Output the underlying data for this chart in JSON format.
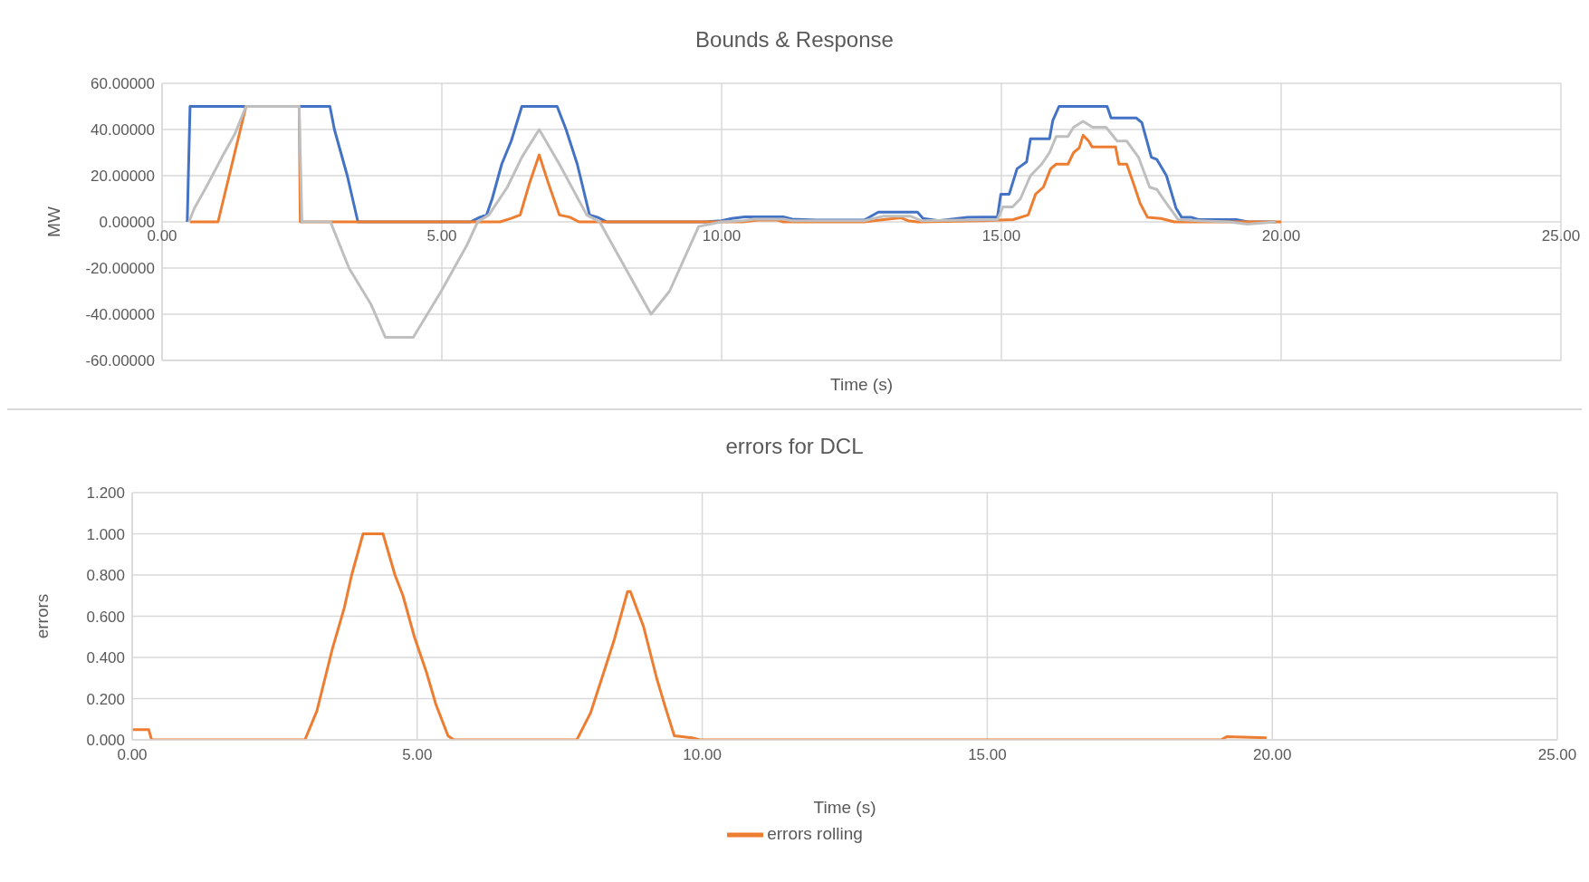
{
  "chart_data": [
    {
      "type": "line",
      "title": "Bounds & Response",
      "xlabel": "Time (s)",
      "ylabel": "MW",
      "xlim": [
        0,
        25
      ],
      "ylim": [
        -60,
        60
      ],
      "xticks": [
        {
          "value": 0,
          "label": "0.00"
        },
        {
          "value": 5,
          "label": "5.00"
        },
        {
          "value": 10,
          "label": "10.00"
        },
        {
          "value": 15,
          "label": "15.00"
        },
        {
          "value": 20,
          "label": "20.00"
        },
        {
          "value": 25,
          "label": "25.00"
        }
      ],
      "yticks": [
        {
          "value": -60,
          "label": "-60.00000"
        },
        {
          "value": -40,
          "label": "-40.00000"
        },
        {
          "value": -20,
          "label": "-20.00000"
        },
        {
          "value": 0,
          "label": "0.00000"
        },
        {
          "value": 20,
          "label": "20.00000"
        },
        {
          "value": 40,
          "label": "40.00000"
        },
        {
          "value": 60,
          "label": "60.00000"
        }
      ],
      "grid": true,
      "legend": false,
      "marker": "none",
      "line_style": "solid",
      "series": [
        {
          "color": "#4472c4",
          "x": [
            0.45,
            0.5,
            3.0,
            3.08,
            3.31,
            3.5,
            5.51,
            5.68,
            5.8,
            5.9,
            6.07,
            6.24,
            6.43,
            7.06,
            7.22,
            7.42,
            7.64,
            7.78,
            7.95,
            9.7,
            10.0,
            10.18,
            10.41,
            11.1,
            11.26,
            11.67,
            12.55,
            12.8,
            13.5,
            13.6,
            13.88,
            14.39,
            14.93,
            14.99,
            15.14,
            15.28,
            15.45,
            15.52,
            15.86,
            15.92,
            16.03,
            16.89,
            16.96,
            17.41,
            17.51,
            17.68,
            17.78,
            17.95,
            18.12,
            18.22,
            18.39,
            18.52,
            19.2,
            19.4,
            19.9
          ],
          "values": [
            0,
            50,
            50,
            40,
            20,
            0,
            0,
            2,
            3,
            10,
            25,
            35,
            50,
            50,
            40,
            25,
            3,
            2,
            0,
            0,
            0.5,
            1.5,
            2.2,
            2.2,
            1.2,
            0.8,
            0.8,
            4.2,
            4.2,
            1.5,
            0.5,
            2,
            2.2,
            12,
            12,
            23,
            26,
            36,
            36,
            44,
            50,
            50,
            45,
            45,
            43,
            28,
            27,
            20,
            6,
            2,
            2,
            1,
            1,
            0,
            0
          ]
        },
        {
          "color": "#ed7d31",
          "x": [
            0.5,
            1.0,
            1.2,
            1.5,
            2.45,
            2.47,
            6.04,
            6.24,
            6.4,
            6.57,
            6.74,
            6.9,
            7.1,
            7.29,
            7.45,
            10.38,
            10.65,
            11.0,
            11.1,
            12.55,
            12.9,
            13.2,
            13.33,
            13.5,
            14.66,
            15.21,
            15.48,
            15.61,
            15.75,
            15.88,
            15.98,
            16.19,
            16.29,
            16.39,
            16.46,
            16.56,
            16.62,
            17.04,
            17.1,
            17.24,
            17.37,
            17.48,
            17.61,
            17.85,
            18.09,
            20.0
          ],
          "values": [
            0,
            0,
            20,
            50,
            50,
            0,
            0,
            1.5,
            3,
            17,
            29,
            17,
            3,
            2,
            0,
            0,
            0.8,
            0.8,
            0,
            0,
            1,
            1.8,
            0.5,
            0,
            0.5,
            1,
            3,
            12,
            15,
            23,
            25,
            25,
            30,
            32,
            37.5,
            35,
            32.5,
            32.5,
            25,
            25,
            16,
            8,
            2,
            1.5,
            0,
            0
          ]
        },
        {
          "color": "#bfbfbf",
          "x": [
            0.48,
            0.58,
            0.81,
            1.07,
            1.3,
            1.5,
            2.45,
            2.5,
            3.01,
            3.34,
            3.74,
            3.99,
            4.49,
            4.99,
            5.45,
            5.64,
            5.84,
            6.17,
            6.43,
            6.74,
            7.1,
            7.59,
            7.82,
            8.28,
            8.74,
            9.07,
            9.59,
            9.99,
            10.38,
            10.58,
            11.1,
            11.26,
            12.55,
            12.9,
            13.37,
            13.57,
            14.93,
            15.03,
            15.2,
            15.34,
            15.52,
            15.72,
            15.86,
            15.98,
            16.19,
            16.29,
            16.46,
            16.63,
            16.87,
            17.07,
            17.24,
            17.45,
            17.65,
            17.78,
            17.95,
            18.16,
            18.52,
            19.06,
            19.4,
            19.9
          ],
          "values": [
            0,
            6,
            16,
            28,
            38,
            50,
            50,
            0,
            0,
            -20,
            -36,
            -50,
            -50,
            -30,
            -10,
            0,
            3,
            15,
            28,
            40,
            25,
            3,
            0,
            -20,
            -40,
            -30,
            -2,
            0,
            0.5,
            1.2,
            1.2,
            0.5,
            0.5,
            2.5,
            2.5,
            0.5,
            1,
            6.5,
            6.5,
            10,
            20,
            25,
            30,
            37,
            37,
            41,
            43.5,
            41,
            41,
            35,
            35,
            28,
            15,
            14,
            8,
            1,
            0.5,
            0,
            -1,
            0
          ]
        }
      ]
    },
    {
      "type": "line",
      "title": "errors for DCL",
      "xlabel": "Time (s)",
      "ylabel": "errors",
      "xlim": [
        0,
        25
      ],
      "ylim": [
        0,
        1.2
      ],
      "xticks": [
        {
          "value": 0,
          "label": "0.00"
        },
        {
          "value": 5,
          "label": "5.00"
        },
        {
          "value": 10,
          "label": "10.00"
        },
        {
          "value": 15,
          "label": "15.00"
        },
        {
          "value": 20,
          "label": "20.00"
        },
        {
          "value": 25,
          "label": "25.00"
        }
      ],
      "yticks": [
        {
          "value": 0,
          "label": "0.000"
        },
        {
          "value": 0.2,
          "label": "0.200"
        },
        {
          "value": 0.4,
          "label": "0.400"
        },
        {
          "value": 0.6,
          "label": "0.600"
        },
        {
          "value": 0.8,
          "label": "0.800"
        },
        {
          "value": 1.0,
          "label": "1.000"
        },
        {
          "value": 1.2,
          "label": "1.200"
        }
      ],
      "grid": true,
      "legend": "bottom",
      "marker": "none",
      "line_style": "solid",
      "series": [
        {
          "name": "errors rolling",
          "color": "#ed7d31",
          "x": [
            0,
            0.29,
            0.34,
            3.03,
            3.24,
            3.51,
            3.72,
            3.85,
            4.05,
            4.4,
            4.61,
            4.75,
            4.95,
            5.16,
            5.33,
            5.54,
            5.64,
            7.8,
            8.04,
            8.24,
            8.45,
            8.69,
            8.74,
            8.97,
            9.2,
            9.34,
            9.51,
            9.82,
            9.96,
            19.1,
            19.2,
            19.9
          ],
          "values": [
            0.05,
            0.05,
            0,
            0,
            0.14,
            0.44,
            0.64,
            0.8,
            1.0,
            1.0,
            0.8,
            0.7,
            0.5,
            0.33,
            0.17,
            0.02,
            0,
            0,
            0.13,
            0.3,
            0.48,
            0.72,
            0.72,
            0.55,
            0.3,
            0.17,
            0.02,
            0.01,
            0,
            0,
            0.015,
            0.01
          ]
        }
      ]
    }
  ]
}
